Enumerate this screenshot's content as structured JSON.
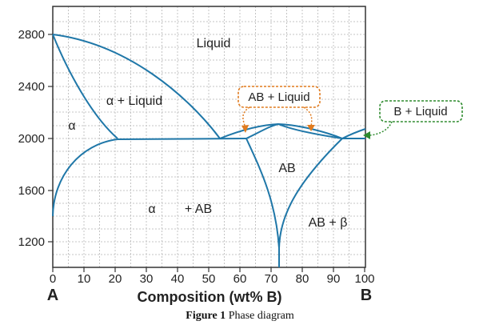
{
  "diagram": {
    "x_ticks": [
      "0",
      "10",
      "20",
      "30",
      "40",
      "50",
      "60",
      "70",
      "80",
      "90",
      "100"
    ],
    "y_ticks": [
      "1200",
      "1600",
      "2000",
      "2400",
      "2800"
    ],
    "x_axis_label": "Composition (wt% B)",
    "left_end_label": "A",
    "right_end_label": "B",
    "regions": {
      "liquid": "Liquid",
      "alpha_liquid": "α + Liquid",
      "alpha": "α",
      "alpha_ab_alpha": "α",
      "alpha_ab_rest": "+ AB",
      "ab": "AB",
      "ab_beta": "AB + β"
    },
    "callouts": {
      "ab_liquid": "AB + Liquid",
      "b_liquid": "B + Liquid"
    },
    "caption": {
      "prefix": "Figure 1",
      "text": " Phase diagram"
    },
    "colors": {
      "curve": "#1f77a8",
      "callout_orange": "#e07b1f",
      "callout_green": "#2e8b2e",
      "grid": "#bdbdbd"
    }
  }
}
